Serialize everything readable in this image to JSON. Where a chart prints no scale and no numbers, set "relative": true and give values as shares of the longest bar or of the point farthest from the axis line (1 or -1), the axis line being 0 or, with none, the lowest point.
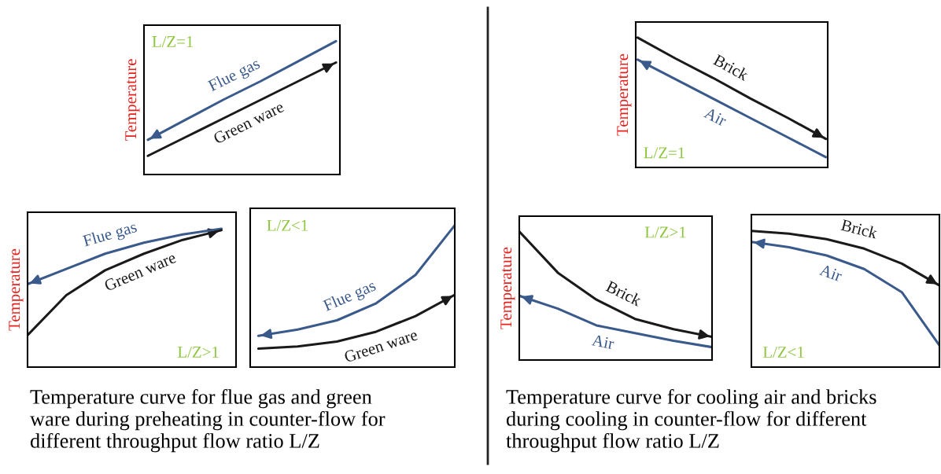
{
  "chart_data": [
    {
      "type": "line",
      "ylabel": "Temperature",
      "relative": true,
      "categories": [
        null,
        null,
        null,
        null,
        null,
        null
      ],
      "annotations": [
        "L/Z=1"
      ],
      "series": [
        {
          "name": "Flue gas",
          "color": "#3a5a8c",
          "values": [
            0.26,
            0.41,
            0.56,
            0.7,
            0.85,
            1.0
          ]
        },
        {
          "name": "Green ware",
          "color": "#1a1a1a",
          "values": [
            0.14,
            0.28,
            0.42,
            0.56,
            0.7,
            0.84
          ]
        }
      ]
    },
    {
      "type": "line",
      "ylabel": "Temperature",
      "relative": true,
      "categories": [
        null,
        null,
        null,
        null,
        null,
        null
      ],
      "annotations": [
        "L/Z>1",
        "Temperature curve for flue gas and green\nware during preheating in counter-flow for\ndifferent throughput flow ratio L/Z"
      ],
      "series": [
        {
          "name": "Flue gas",
          "color": "#3a5a8c",
          "values": [
            0.6,
            0.71,
            0.82,
            0.9,
            0.96,
            1.0
          ]
        },
        {
          "name": "Green ware",
          "color": "#1a1a1a",
          "values": [
            0.23,
            0.52,
            0.7,
            0.82,
            0.92,
            0.99
          ]
        }
      ]
    },
    {
      "type": "line",
      "relative": true,
      "categories": [
        null,
        null,
        null,
        null,
        null,
        null
      ],
      "annotations": [
        "L/Z<1"
      ],
      "series": [
        {
          "name": "Flue gas",
          "color": "#3a5a8c",
          "values": [
            0.22,
            0.265,
            0.33,
            0.45,
            0.65,
            1.0
          ]
        },
        {
          "name": "Green ware",
          "color": "#1a1a1a",
          "values": [
            0.13,
            0.145,
            0.18,
            0.25,
            0.36,
            0.51
          ]
        }
      ]
    },
    {
      "type": "line",
      "ylabel": "Temperature",
      "relative": true,
      "categories": [
        null,
        null,
        null,
        null,
        null,
        null
      ],
      "annotations": [
        "L/Z=1"
      ],
      "series": [
        {
          "name": "Brick",
          "color": "#1a1a1a",
          "values": [
            1.0,
            0.84,
            0.69,
            0.53,
            0.38,
            0.22
          ]
        },
        {
          "name": "Air",
          "color": "#3a5a8c",
          "values": [
            0.83,
            0.68,
            0.53,
            0.38,
            0.23,
            0.08
          ]
        }
      ]
    },
    {
      "type": "line",
      "ylabel": "Temperature",
      "relative": true,
      "categories": [
        null,
        null,
        null,
        null,
        null,
        null
      ],
      "annotations": [
        "L/Z>1",
        "Temperature curve for cooling air and bricks\nduring cooling in counter-flow for different\nthroughput flow ratio L/Z"
      ],
      "series": [
        {
          "name": "Brick",
          "color": "#1a1a1a",
          "values": [
            1.0,
            0.68,
            0.47,
            0.32,
            0.24,
            0.18
          ]
        },
        {
          "name": "Air",
          "color": "#3a5a8c",
          "values": [
            0.5,
            0.4,
            0.27,
            0.21,
            0.15,
            0.1
          ]
        }
      ]
    },
    {
      "type": "line",
      "relative": true,
      "categories": [
        null,
        null,
        null,
        null,
        null,
        null
      ],
      "annotations": [
        "L/Z<1"
      ],
      "series": [
        {
          "name": "Brick",
          "color": "#1a1a1a",
          "values": [
            1.0,
            0.98,
            0.94,
            0.87,
            0.76,
            0.6
          ]
        },
        {
          "name": "Air",
          "color": "#3a5a8c",
          "values": [
            0.92,
            0.88,
            0.82,
            0.72,
            0.55,
            0.16
          ]
        }
      ]
    }
  ]
}
